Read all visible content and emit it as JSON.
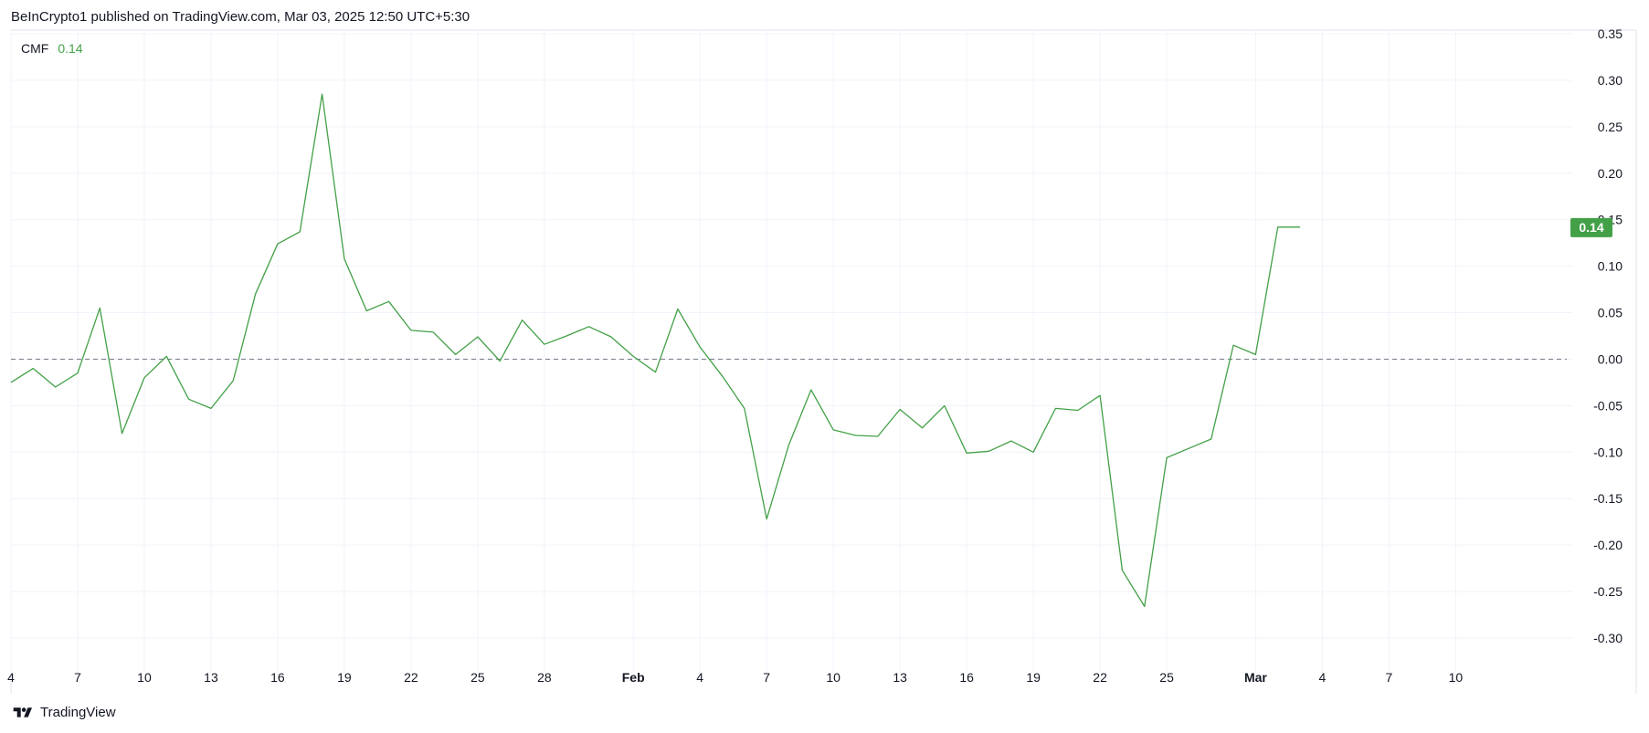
{
  "header": {
    "published": "BeInCrypto1 published on TradingView.com, Mar 03, 2025 12:50 UTC+5:30"
  },
  "footer": {
    "brand": "TradingView",
    "logo_icon": "tradingview-logo-icon"
  },
  "legend": {
    "name": "CMF",
    "value": "0.14"
  },
  "colors": {
    "line": "#43a047",
    "last_value_badge": "#43a047",
    "grid": "#f0f3fa",
    "zero_line": "#787b86",
    "axis_text": "#131722"
  },
  "chart_data": {
    "type": "line",
    "title": "",
    "series": [
      {
        "name": "CMF",
        "x_dates": [
          "2025-01-04",
          "2025-01-05",
          "2025-01-06",
          "2025-01-07",
          "2025-01-08",
          "2025-01-09",
          "2025-01-10",
          "2025-01-11",
          "2025-01-12",
          "2025-01-13",
          "2025-01-14",
          "2025-01-15",
          "2025-01-16",
          "2025-01-17",
          "2025-01-18",
          "2025-01-19",
          "2025-01-20",
          "2025-01-21",
          "2025-01-22",
          "2025-01-23",
          "2025-01-24",
          "2025-01-25",
          "2025-01-26",
          "2025-01-27",
          "2025-01-28",
          "2025-01-29",
          "2025-01-30",
          "2025-01-31",
          "2025-02-01",
          "2025-02-02",
          "2025-02-03",
          "2025-02-04",
          "2025-02-05",
          "2025-02-06",
          "2025-02-07",
          "2025-02-08",
          "2025-02-09",
          "2025-02-10",
          "2025-02-11",
          "2025-02-12",
          "2025-02-13",
          "2025-02-14",
          "2025-02-15",
          "2025-02-16",
          "2025-02-17",
          "2025-02-18",
          "2025-02-19",
          "2025-02-20",
          "2025-02-21",
          "2025-02-22",
          "2025-02-23",
          "2025-02-24",
          "2025-02-25",
          "2025-02-26",
          "2025-02-27",
          "2025-02-28",
          "2025-03-01",
          "2025-03-02",
          "2025-03-03"
        ],
        "values": [
          -0.025,
          -0.01,
          -0.03,
          -0.015,
          0.055,
          -0.08,
          -0.02,
          0.003,
          -0.043,
          -0.053,
          -0.023,
          0.07,
          0.124,
          0.137,
          0.285,
          0.108,
          0.052,
          0.062,
          0.031,
          0.029,
          0.005,
          0.024,
          -0.002,
          0.042,
          0.016,
          0.025,
          0.035,
          0.024,
          0.003,
          -0.014,
          0.054,
          0.013,
          -0.018,
          -0.053,
          -0.172,
          -0.092,
          -0.033,
          -0.076,
          -0.082,
          -0.083,
          -0.054,
          -0.074,
          -0.05,
          -0.101,
          -0.099,
          -0.088,
          -0.1,
          -0.053,
          -0.055,
          -0.039,
          -0.227,
          -0.266,
          -0.106,
          -0.096,
          -0.086,
          0.015,
          0.005,
          0.142,
          0.142
        ]
      }
    ],
    "ylim": [
      -0.3,
      0.35
    ],
    "y_ticks": [
      0.35,
      0.3,
      0.25,
      0.2,
      0.15,
      0.1,
      0.05,
      0.0,
      -0.05,
      -0.1,
      -0.15,
      -0.2,
      -0.25,
      -0.3
    ],
    "x_ticks": [
      {
        "date": "2025-01-04",
        "label": "4",
        "bold": false
      },
      {
        "date": "2025-01-07",
        "label": "7",
        "bold": false
      },
      {
        "date": "2025-01-10",
        "label": "10",
        "bold": false
      },
      {
        "date": "2025-01-13",
        "label": "13",
        "bold": false
      },
      {
        "date": "2025-01-16",
        "label": "16",
        "bold": false
      },
      {
        "date": "2025-01-19",
        "label": "19",
        "bold": false
      },
      {
        "date": "2025-01-22",
        "label": "22",
        "bold": false
      },
      {
        "date": "2025-01-25",
        "label": "25",
        "bold": false
      },
      {
        "date": "2025-01-28",
        "label": "28",
        "bold": false
      },
      {
        "date": "2025-02-01",
        "label": "Feb",
        "bold": true
      },
      {
        "date": "2025-02-04",
        "label": "4",
        "bold": false
      },
      {
        "date": "2025-02-07",
        "label": "7",
        "bold": false
      },
      {
        "date": "2025-02-10",
        "label": "10",
        "bold": false
      },
      {
        "date": "2025-02-13",
        "label": "13",
        "bold": false
      },
      {
        "date": "2025-02-16",
        "label": "16",
        "bold": false
      },
      {
        "date": "2025-02-19",
        "label": "19",
        "bold": false
      },
      {
        "date": "2025-02-22",
        "label": "22",
        "bold": false
      },
      {
        "date": "2025-02-25",
        "label": "25",
        "bold": false
      },
      {
        "date": "2025-03-01",
        "label": "Mar",
        "bold": true
      },
      {
        "date": "2025-03-04",
        "label": "4",
        "bold": false
      },
      {
        "date": "2025-03-07",
        "label": "7",
        "bold": false
      },
      {
        "date": "2025-03-10",
        "label": "10",
        "bold": false
      }
    ],
    "x_range": [
      "2025-01-04",
      "2025-03-15"
    ],
    "zero_line": {
      "value": 0.0,
      "style": "dashed"
    },
    "last_value_label": "0.14",
    "grid": true,
    "legend": "top-left"
  }
}
